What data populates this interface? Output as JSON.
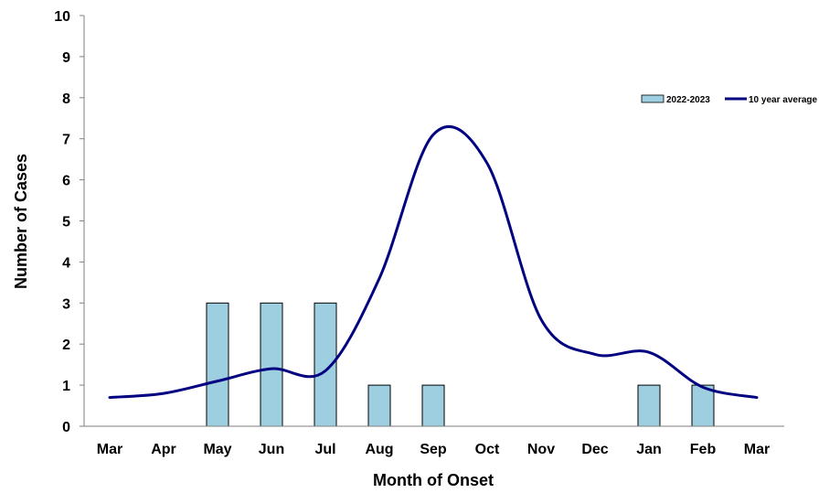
{
  "chart_data": {
    "type": "bar",
    "categories": [
      "Mar",
      "Apr",
      "May",
      "Jun",
      "Jul",
      "Aug",
      "Sep",
      "Oct",
      "Nov",
      "Dec",
      "Jan",
      "Feb",
      "Mar"
    ],
    "series": [
      {
        "name": "2022-2023",
        "type": "bar",
        "values": [
          0,
          0,
          3,
          3,
          3,
          1,
          1,
          0,
          0,
          0,
          1,
          1,
          0
        ],
        "color": "#9DCFE0"
      },
      {
        "name": "10 year average",
        "type": "line",
        "smooth": true,
        "values": [
          0.7,
          0.8,
          1.1,
          1.4,
          1.35,
          3.6,
          7.1,
          6.4,
          2.6,
          1.75,
          1.8,
          0.95,
          0.7
        ],
        "color": "#000080"
      }
    ],
    "xlabel": "Month of Onset",
    "ylabel": "Number of Cases",
    "ylim": [
      0,
      10
    ],
    "yticks": [
      0,
      1,
      2,
      3,
      4,
      5,
      6,
      7,
      8,
      9,
      10
    ],
    "legend_position": "top-right",
    "grid": false
  }
}
